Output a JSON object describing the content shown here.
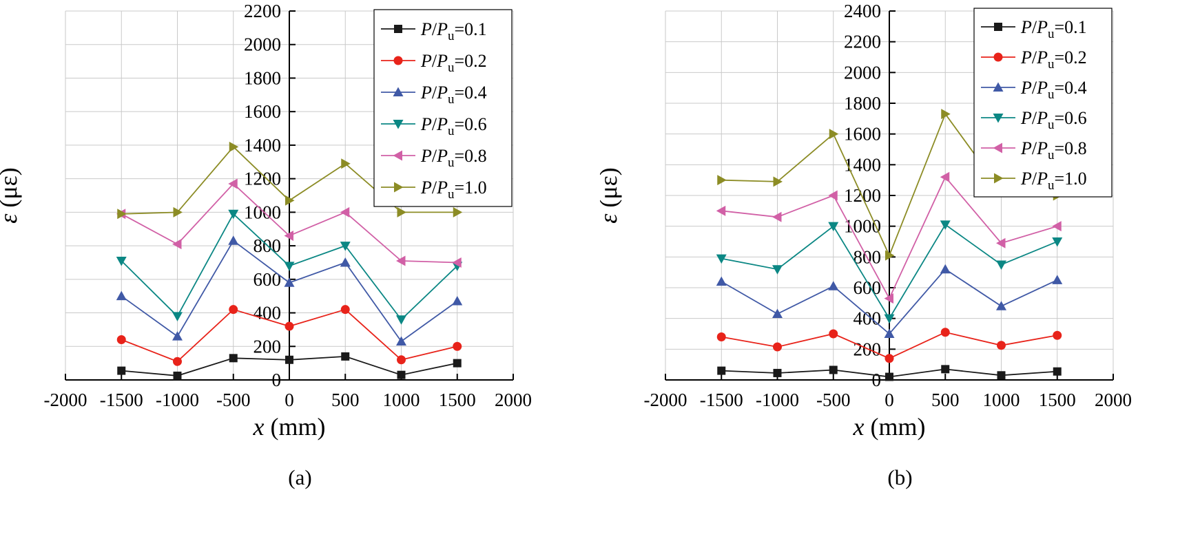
{
  "figure": {
    "background": "#ffffff",
    "grid_color": "#c9c9c9",
    "axis_color": "#000000"
  },
  "chart_data": [
    {
      "type": "line",
      "caption": "(a)",
      "xlabel": "x (mm)",
      "ylabel": "ε (με)",
      "xlim": [
        -2000,
        2000
      ],
      "ylim": [
        0,
        2200
      ],
      "xticks": [
        -2000,
        -1500,
        -1000,
        -500,
        0,
        500,
        1000,
        1500,
        2000
      ],
      "yticks": [
        0,
        200,
        400,
        600,
        800,
        1000,
        1200,
        1400,
        1600,
        1800,
        2000,
        2200
      ],
      "grid": true,
      "grid_color": "#c9c9c9",
      "legend_position": "top-right",
      "x": [
        -1500,
        -1000,
        -500,
        0,
        500,
        1000,
        1500
      ],
      "series": [
        {
          "name": "P/P_u=0.1",
          "marker": "square",
          "color": "#1a1a1a",
          "values": [
            55,
            25,
            130,
            120,
            140,
            30,
            100
          ]
        },
        {
          "name": "P/P_u=0.2",
          "marker": "circle",
          "color": "#e8231a",
          "values": [
            240,
            110,
            420,
            320,
            420,
            120,
            200
          ]
        },
        {
          "name": "P/P_u=0.4",
          "marker": "triangle-up",
          "color": "#4059a6",
          "values": [
            500,
            260,
            830,
            580,
            700,
            230,
            470
          ]
        },
        {
          "name": "P/P_u=0.6",
          "marker": "triangle-down",
          "color": "#0b8784",
          "values": [
            710,
            380,
            990,
            680,
            800,
            360,
            680
          ]
        },
        {
          "name": "P/P_u=0.8",
          "marker": "triangle-left",
          "color": "#d160a6",
          "values": [
            990,
            810,
            1170,
            860,
            1000,
            710,
            700
          ]
        },
        {
          "name": "P/P_u=1.0",
          "marker": "triangle-right",
          "color": "#8c8c25",
          "values": [
            990,
            1000,
            1390,
            1070,
            1290,
            1000,
            1000
          ]
        }
      ]
    },
    {
      "type": "line",
      "caption": "(b)",
      "xlabel": "x (mm)",
      "ylabel": "ε (με)",
      "xlim": [
        -2000,
        2000
      ],
      "ylim": [
        0,
        2400
      ],
      "xticks": [
        -2000,
        -1500,
        -1000,
        -500,
        0,
        500,
        1000,
        1500,
        2000
      ],
      "yticks": [
        0,
        200,
        400,
        600,
        800,
        1000,
        1200,
        1400,
        1600,
        1800,
        2000,
        2200,
        2400
      ],
      "grid": true,
      "grid_color": "#c9c9c9",
      "legend_position": "top-right",
      "x": [
        -1500,
        -1000,
        -500,
        0,
        500,
        1000,
        1500
      ],
      "series": [
        {
          "name": "P/P_u=0.1",
          "marker": "square",
          "color": "#1a1a1a",
          "values": [
            60,
            45,
            65,
            20,
            70,
            30,
            55
          ]
        },
        {
          "name": "P/P_u=0.2",
          "marker": "circle",
          "color": "#e8231a",
          "values": [
            280,
            215,
            300,
            140,
            310,
            225,
            290
          ]
        },
        {
          "name": "P/P_u=0.4",
          "marker": "triangle-up",
          "color": "#4059a6",
          "values": [
            640,
            430,
            610,
            300,
            720,
            480,
            650
          ]
        },
        {
          "name": "P/P_u=0.6",
          "marker": "triangle-down",
          "color": "#0b8784",
          "values": [
            790,
            720,
            1000,
            400,
            1010,
            750,
            900
          ]
        },
        {
          "name": "P/P_u=0.8",
          "marker": "triangle-left",
          "color": "#d160a6",
          "values": [
            1100,
            1060,
            1200,
            530,
            1320,
            890,
            1000
          ]
        },
        {
          "name": "P/P_u=1.0",
          "marker": "triangle-right",
          "color": "#8c8c25",
          "values": [
            1300,
            1290,
            1600,
            810,
            1730,
            1230,
            1200
          ]
        }
      ]
    }
  ]
}
